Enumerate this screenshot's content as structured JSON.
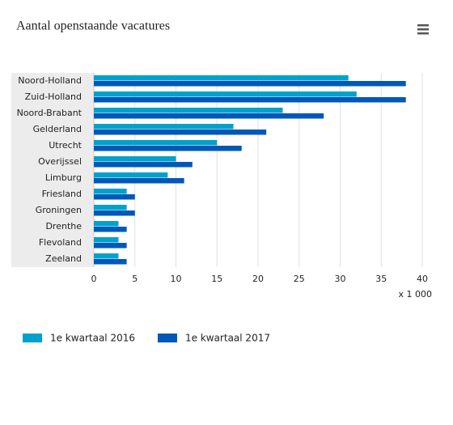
{
  "chart_data": {
    "type": "hbar",
    "title": "Aantal openstaande vacatures",
    "x_label": "x 1 000",
    "categories": [
      "Noord-Holland",
      "Zuid-Holland",
      "Noord-Brabant",
      "Gelderland",
      "Utrecht",
      "Overijssel",
      "Limburg",
      "Friesland",
      "Groningen",
      "Drenthe",
      "Flevoland",
      "Zeeland"
    ],
    "series": [
      {
        "name": "1e kwartaal 2016",
        "color": "#00a1cd",
        "values": [
          31,
          32,
          23,
          17,
          15,
          10,
          9,
          4,
          4,
          3,
          3,
          3
        ]
      },
      {
        "name": "1e kwartaal 2017",
        "color": "#0058b8",
        "values": [
          38,
          38,
          28,
          21,
          18,
          12,
          11,
          5,
          5,
          4,
          4,
          4
        ]
      }
    ],
    "xlim": [
      0,
      40
    ],
    "xticks": [
      0,
      5,
      10,
      15,
      20,
      25,
      30,
      35,
      40
    ],
    "grid": true,
    "legend": "bottom"
  }
}
